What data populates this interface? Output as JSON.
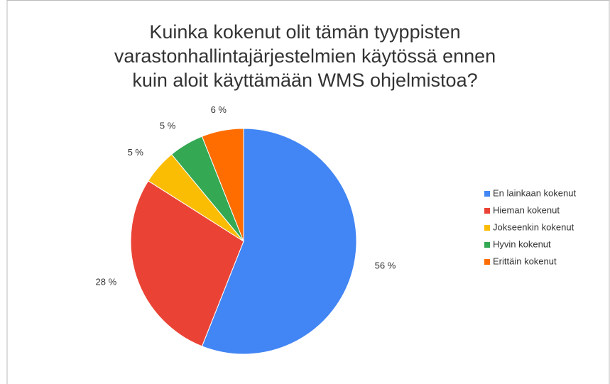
{
  "chart_data": {
    "type": "pie",
    "title": "Kuinka kokenut olit tämän tyyppisten varastonhallintajärjestelmien käytössä ennen kuin aloit käyttämään WMS ohjelmistoa?",
    "categories": [
      "En lainkaan kokenut",
      "Hieman kokenut",
      "Jokseenkin kokenut",
      "Hyvin kokenut",
      "Erittäin kokenut"
    ],
    "values": [
      56,
      28,
      5,
      5,
      6
    ],
    "value_labels": [
      "56 %",
      "28 %",
      "5 %",
      "5 %",
      "6 %"
    ],
    "colors": [
      "#4285f4",
      "#ea4335",
      "#fbbc04",
      "#34a853",
      "#ff6d01"
    ],
    "legend": "right"
  }
}
